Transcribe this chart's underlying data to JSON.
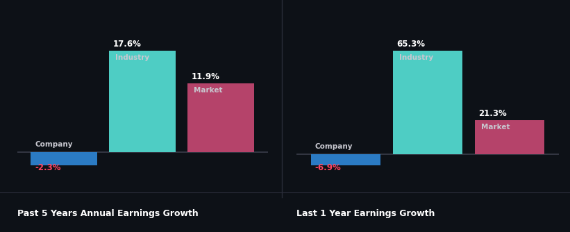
{
  "background_color": "#0d1117",
  "chart1": {
    "title": "Past 5 Years Annual Earnings Growth",
    "company_value": -2.3,
    "industry_value": 17.6,
    "market_value": 11.9,
    "company_label": "Company",
    "industry_label": "Industry",
    "market_label": "Market"
  },
  "chart2": {
    "title": "Last 1 Year Earnings Growth",
    "company_value": -6.9,
    "industry_value": 65.3,
    "market_value": 21.3,
    "company_label": "Company",
    "industry_label": "Industry",
    "market_label": "Market"
  },
  "colors": {
    "company": "#2b7bc4",
    "industry": "#4ecdc4",
    "market": "#b5436a",
    "negative_text": "#ff4560",
    "positive_text": "#ffffff",
    "title_text": "#ffffff",
    "label_text": "#c8c8d0",
    "baseline": "#3a3d4a"
  },
  "bar_width": 0.85
}
